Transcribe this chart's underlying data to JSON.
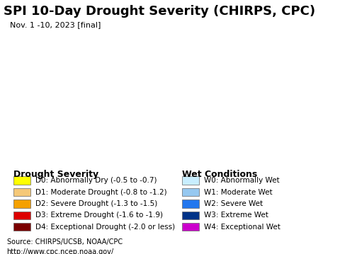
{
  "title": "SPI 10-Day Drought Severity (CHIRPS, CPC)",
  "subtitle": "Nov. 1 -10, 2023 [final]",
  "title_fontsize": 13,
  "subtitle_fontsize": 8,
  "map_bg_color": "#c8eef8",
  "legend_bg_color": "#c8eef8",
  "source_bg_color": "#d8d8d8",
  "drought_labels": [
    "D0: Abnormally Dry (-0.5 to -0.7)",
    "D1: Moderate Drought (-0.8 to -1.2)",
    "D2: Severe Drought (-1.3 to -1.5)",
    "D3: Extreme Drought (-1.6 to -1.9)",
    "D4: Exceptional Drought (-2.0 or less)"
  ],
  "drought_colors": [
    "#ffff00",
    "#f5c878",
    "#f5a000",
    "#dd0000",
    "#7a0000"
  ],
  "wet_labels": [
    "W0: Abnormally Wet",
    "W1: Moderate Wet",
    "W2: Severe Wet",
    "W3: Extreme Wet",
    "W4: Exceptional Wet"
  ],
  "wet_colors": [
    "#c8eeff",
    "#96c8f0",
    "#2277ee",
    "#003388",
    "#cc00cc"
  ],
  "drought_section_title": "Drought Severity",
  "wet_section_title": "Wet Conditions",
  "source_line1": "Source: CHIRPS/UCSB, NOAA/CPC",
  "source_line2": "http://www.cpc.ncep.noaa.gov/",
  "source_fontsize": 7,
  "legend_title_fontsize": 9,
  "legend_item_fontsize": 7.5,
  "fig_width": 4.8,
  "fig_height": 3.59,
  "dpi": 100
}
